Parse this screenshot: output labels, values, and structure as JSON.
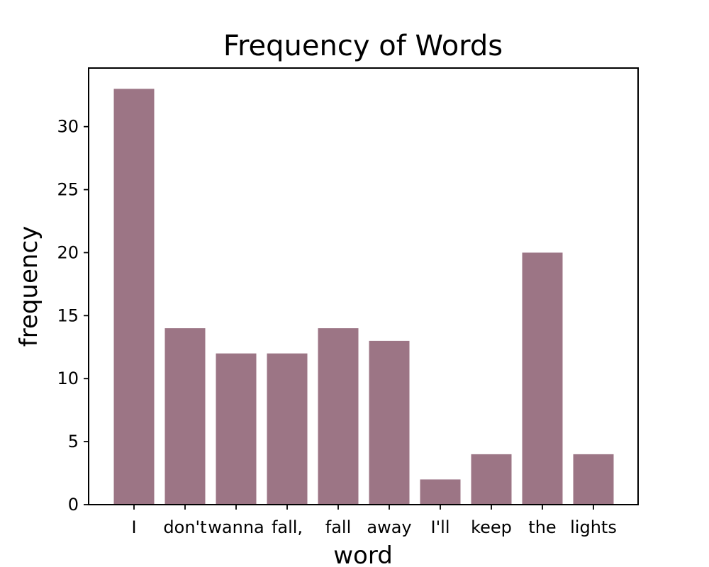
{
  "chart_data": {
    "type": "bar",
    "title": "Frequency of Words",
    "xlabel": "word",
    "ylabel": "frequency",
    "categories": [
      "I",
      "don't",
      "wanna",
      "fall,",
      "fall",
      "away",
      "I'll",
      "keep",
      "the",
      "lights"
    ],
    "values": [
      33,
      14,
      12,
      12,
      14,
      13,
      2,
      4,
      20,
      4
    ],
    "ylim": [
      0,
      34.65
    ],
    "yticks": [
      0,
      5,
      10,
      15,
      20,
      25,
      30
    ],
    "grid": false,
    "legend": "none",
    "bar_color": "#9c7585"
  }
}
